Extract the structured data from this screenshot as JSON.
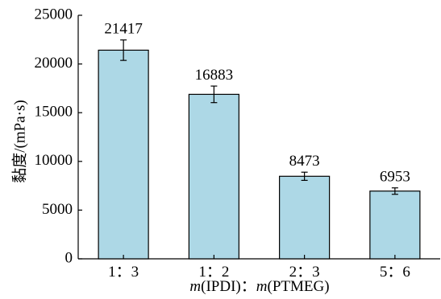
{
  "chart_data": {
    "type": "bar",
    "categories": [
      "1：3",
      "1：2",
      "2：3",
      "5：6"
    ],
    "values": [
      21417,
      16883,
      8473,
      6953
    ],
    "error": [
      1050,
      850,
      420,
      330
    ],
    "data_labels": [
      "21417",
      "16883",
      "8473",
      "6953"
    ],
    "title": "",
    "xlabel": "m(IPDI)：m(PTMEG)",
    "xlabel_parts": {
      "m1": "m",
      "t1": "(IPDI)：",
      "m2": "m",
      "t2": "(PTMEG)"
    },
    "ylabel": "黏度/(mPa·s)",
    "ylim": [
      0,
      25000
    ],
    "yticks": [
      0,
      5000,
      10000,
      15000,
      20000,
      25000
    ],
    "ytick_labels": [
      "0",
      "5000",
      "10000",
      "15000",
      "20000",
      "25000"
    ],
    "grid": false,
    "colors": {
      "bar_fill": "#add8e6",
      "bar_stroke": "#000000",
      "axis": "#000000"
    }
  }
}
